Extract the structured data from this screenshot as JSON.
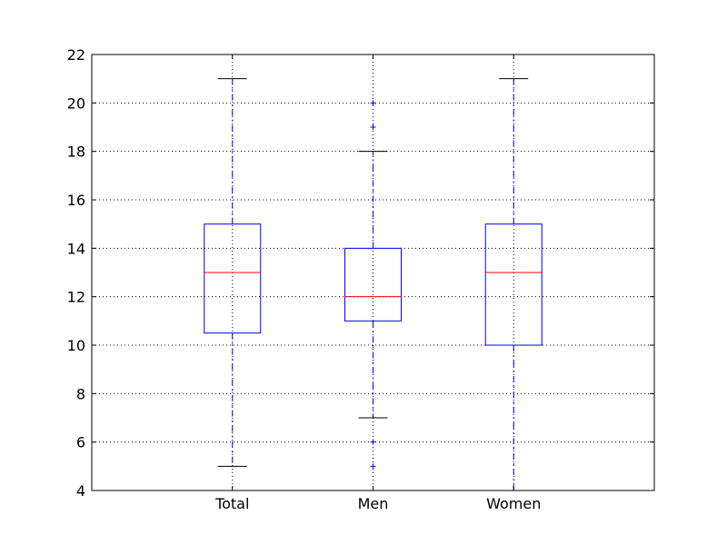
{
  "chart_data": {
    "type": "boxplot",
    "categories": [
      "Total",
      "Men",
      "Women"
    ],
    "boxes": [
      {
        "name": "Total",
        "whisker_low": 5,
        "q1": 10.5,
        "median": 13,
        "q3": 15,
        "whisker_high": 21,
        "outliers": []
      },
      {
        "name": "Men",
        "whisker_low": 7,
        "q1": 11,
        "median": 12,
        "q3": 14,
        "whisker_high": 18,
        "outliers": [
          5,
          6,
          19,
          20
        ]
      },
      {
        "name": "Women",
        "whisker_low": 4,
        "q1": 10,
        "median": 13,
        "q3": 15,
        "whisker_high": 21,
        "outliers": []
      }
    ],
    "ylim": [
      4,
      22
    ],
    "yticks": [
      4,
      6,
      8,
      10,
      12,
      14,
      16,
      18,
      20,
      22
    ],
    "grid": true,
    "title": "",
    "xlabel": "",
    "ylabel": "",
    "colors": {
      "box": "#0000ff",
      "median": "#ff0000",
      "whisker": "#0000ff",
      "cap": "#000000",
      "outlier": "#0000ff",
      "grid": "#000000",
      "axes": "#000000"
    }
  }
}
